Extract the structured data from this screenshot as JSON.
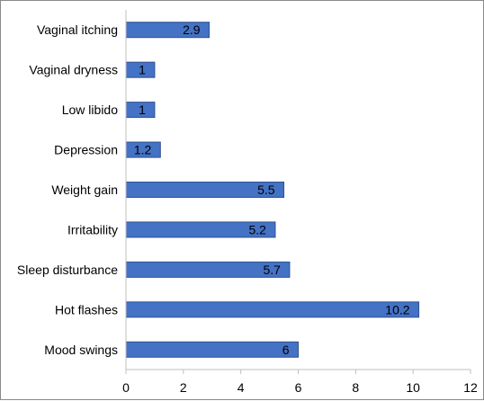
{
  "chart_data": {
    "type": "bar",
    "orientation": "horizontal",
    "categories": [
      "Vaginal itching",
      "Vaginal dryness",
      "Low libido",
      "Depression",
      "Weight gain",
      "Irritability",
      "Sleep disturbance",
      "Hot flashes",
      "Mood swings"
    ],
    "values": [
      2.9,
      1,
      1,
      1.2,
      5.5,
      5.2,
      5.7,
      10.2,
      6
    ],
    "data_labels": [
      "2.9",
      "1",
      "1",
      "1.2",
      "5.5",
      "5.2",
      "5.7",
      "10.2",
      "6"
    ],
    "xlim": [
      0,
      12
    ],
    "xticks": [
      0,
      2,
      4,
      6,
      8,
      10,
      12
    ],
    "title": "",
    "xlabel": "",
    "ylabel": "",
    "grid": false,
    "legend": "none",
    "bar_color": "#4472C4",
    "bar_edge_color": "#2F528F"
  }
}
